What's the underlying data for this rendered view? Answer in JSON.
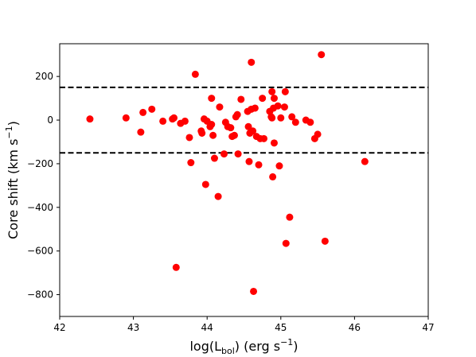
{
  "chart_data": {
    "type": "scatter",
    "xlabel": {
      "prefix": "log(L",
      "sub": "bol",
      "suffix": ") (erg s",
      "sup": "−1",
      "close": ")"
    },
    "ylabel": {
      "prefix": "Core shift (km s",
      "sup": "−1",
      "close": ")"
    },
    "xlim": [
      42,
      47
    ],
    "ylim": [
      -900,
      350
    ],
    "xticks": [
      42,
      43,
      44,
      45,
      46,
      47
    ],
    "xtick_labels": [
      "42",
      "43",
      "44",
      "45",
      "46",
      "47"
    ],
    "yticks": [
      200,
      0,
      -200,
      -400,
      -600,
      -800
    ],
    "ytick_labels": [
      "200",
      "0",
      "−200",
      "−400",
      "−600",
      "−800"
    ],
    "reference_lines": [
      150,
      -150
    ],
    "marker_color": "#ff0000",
    "line_color": "#000000",
    "grid": false,
    "points": [
      {
        "x": 42.41,
        "y": 5
      },
      {
        "x": 42.9,
        "y": 10
      },
      {
        "x": 43.1,
        "y": -55
      },
      {
        "x": 43.13,
        "y": 35
      },
      {
        "x": 43.25,
        "y": 50
      },
      {
        "x": 43.4,
        "y": -5
      },
      {
        "x": 43.53,
        "y": 5
      },
      {
        "x": 43.55,
        "y": 10
      },
      {
        "x": 43.58,
        "y": -675
      },
      {
        "x": 43.64,
        "y": -15
      },
      {
        "x": 43.7,
        "y": -5
      },
      {
        "x": 43.76,
        "y": -80
      },
      {
        "x": 43.78,
        "y": -195
      },
      {
        "x": 43.84,
        "y": 210
      },
      {
        "x": 43.92,
        "y": -50
      },
      {
        "x": 43.93,
        "y": -60
      },
      {
        "x": 43.96,
        "y": 5
      },
      {
        "x": 43.98,
        "y": -295
      },
      {
        "x": 44.0,
        "y": -5
      },
      {
        "x": 44.04,
        "y": -30
      },
      {
        "x": 44.06,
        "y": 100
      },
      {
        "x": 44.06,
        "y": -20
      },
      {
        "x": 44.08,
        "y": -70
      },
      {
        "x": 44.1,
        "y": -175
      },
      {
        "x": 44.15,
        "y": -350
      },
      {
        "x": 44.17,
        "y": 60
      },
      {
        "x": 44.23,
        "y": -155
      },
      {
        "x": 44.25,
        "y": -10
      },
      {
        "x": 44.28,
        "y": -30
      },
      {
        "x": 44.32,
        "y": -35
      },
      {
        "x": 44.34,
        "y": -75
      },
      {
        "x": 44.37,
        "y": -70
      },
      {
        "x": 44.39,
        "y": 15
      },
      {
        "x": 44.41,
        "y": 25
      },
      {
        "x": 44.42,
        "y": -155
      },
      {
        "x": 44.46,
        "y": 95
      },
      {
        "x": 44.55,
        "y": 40
      },
      {
        "x": 44.56,
        "y": -30
      },
      {
        "x": 44.57,
        "y": -190
      },
      {
        "x": 44.58,
        "y": -60
      },
      {
        "x": 44.6,
        "y": 265
      },
      {
        "x": 44.6,
        "y": 50
      },
      {
        "x": 44.62,
        "y": -50
      },
      {
        "x": 44.63,
        "y": -785
      },
      {
        "x": 44.65,
        "y": 55
      },
      {
        "x": 44.67,
        "y": -75
      },
      {
        "x": 44.7,
        "y": -205
      },
      {
        "x": 44.72,
        "y": -85
      },
      {
        "x": 44.75,
        "y": 100
      },
      {
        "x": 44.77,
        "y": -85
      },
      {
        "x": 44.85,
        "y": 40
      },
      {
        "x": 44.87,
        "y": 15
      },
      {
        "x": 44.88,
        "y": 130
      },
      {
        "x": 44.88,
        "y": 10
      },
      {
        "x": 44.89,
        "y": -260
      },
      {
        "x": 44.9,
        "y": 55
      },
      {
        "x": 44.91,
        "y": 100
      },
      {
        "x": 44.91,
        "y": -105
      },
      {
        "x": 44.96,
        "y": 65
      },
      {
        "x": 44.98,
        "y": -210
      },
      {
        "x": 45.0,
        "y": 10
      },
      {
        "x": 45.05,
        "y": 60
      },
      {
        "x": 45.06,
        "y": 130
      },
      {
        "x": 45.07,
        "y": -565
      },
      {
        "x": 45.12,
        "y": -445
      },
      {
        "x": 45.15,
        "y": 15
      },
      {
        "x": 45.2,
        "y": -10
      },
      {
        "x": 45.34,
        "y": 0
      },
      {
        "x": 45.4,
        "y": -10
      },
      {
        "x": 45.46,
        "y": -85
      },
      {
        "x": 45.5,
        "y": -65
      },
      {
        "x": 45.55,
        "y": 300
      },
      {
        "x": 45.6,
        "y": -555
      },
      {
        "x": 46.14,
        "y": -190
      }
    ]
  }
}
